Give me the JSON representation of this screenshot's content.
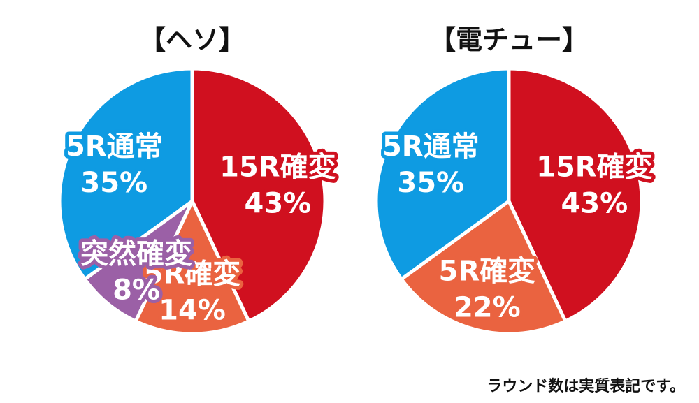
{
  "chart_data": [
    {
      "type": "pie",
      "title": "【ヘソ】",
      "start_angle_deg": 0,
      "direction": "clockwise",
      "slices": [
        {
          "label": "15R確変",
          "value": 43,
          "value_label": "43%",
          "color": "#D0101F"
        },
        {
          "label": "5R確変",
          "value": 14,
          "value_label": "14%",
          "color": "#EA6340"
        },
        {
          "label": "突然確変",
          "value": 8,
          "value_label": "8%",
          "color": "#9B60A6"
        },
        {
          "label": "5R通常",
          "value": 35,
          "value_label": "35%",
          "color": "#0E9BE2"
        }
      ]
    },
    {
      "type": "pie",
      "title": "【電チュー】",
      "start_angle_deg": 0,
      "direction": "clockwise",
      "slices": [
        {
          "label": "15R確変",
          "value": 43,
          "value_label": "43%",
          "color": "#D0101F"
        },
        {
          "label": "5R確変",
          "value": 22,
          "value_label": "22%",
          "color": "#EA6340"
        },
        {
          "label": "5R通常",
          "value": 35,
          "value_label": "35%",
          "color": "#0E9BE2"
        }
      ]
    }
  ],
  "footnote": "ラウンド数は実質表記です。"
}
